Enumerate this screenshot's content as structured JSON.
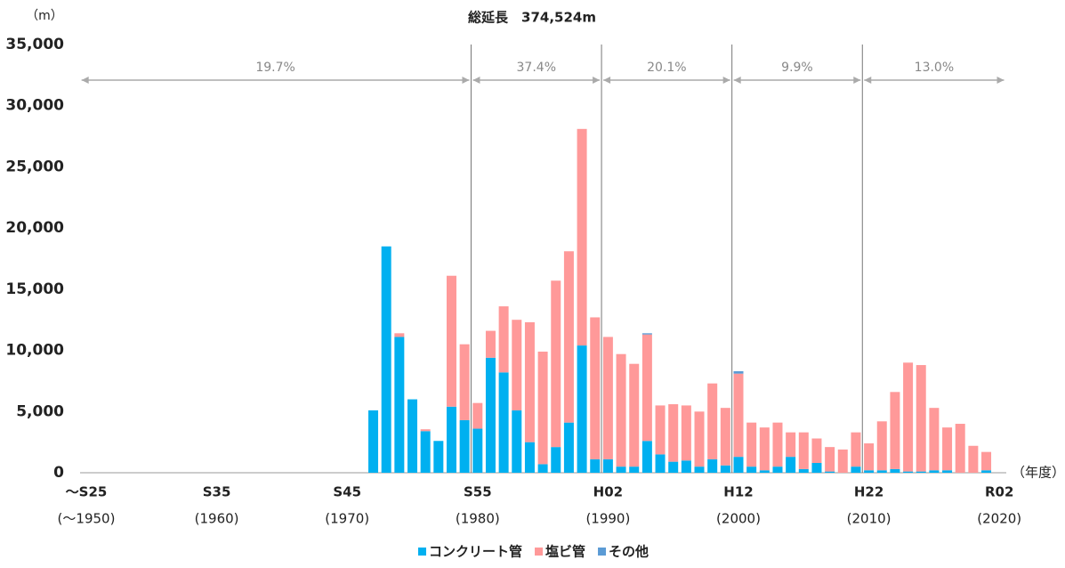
{
  "chart_data": {
    "type": "stacked-bar",
    "title": "総延長　374,524m",
    "y_unit_label": "（m）",
    "x_unit_label": "（年度）",
    "categories": [
      "～S25",
      null,
      null,
      null,
      null,
      null,
      null,
      null,
      null,
      null,
      "S35",
      null,
      null,
      null,
      null,
      null,
      null,
      null,
      null,
      null,
      "S45",
      null,
      null,
      null,
      null,
      null,
      null,
      null,
      null,
      null,
      "S55",
      null,
      null,
      null,
      null,
      null,
      null,
      null,
      null,
      null,
      "H02",
      null,
      null,
      null,
      null,
      null,
      null,
      null,
      null,
      null,
      "H12",
      null,
      null,
      null,
      null,
      null,
      null,
      null,
      null,
      null,
      "H22",
      null,
      null,
      null,
      null,
      null,
      null,
      null,
      null,
      null,
      "R02"
    ],
    "category_years": [
      "(～1950)",
      null,
      null,
      null,
      null,
      null,
      null,
      null,
      null,
      null,
      "(1960)",
      null,
      null,
      null,
      null,
      null,
      null,
      null,
      null,
      null,
      "(1970)",
      null,
      null,
      null,
      null,
      null,
      null,
      null,
      null,
      null,
      "(1980)",
      null,
      null,
      null,
      null,
      null,
      null,
      null,
      null,
      null,
      "(1990)",
      null,
      null,
      null,
      null,
      null,
      null,
      null,
      null,
      null,
      "(2000)",
      null,
      null,
      null,
      null,
      null,
      null,
      null,
      null,
      null,
      "(2010)",
      null,
      null,
      null,
      null,
      null,
      null,
      null,
      null,
      null,
      "(2020)"
    ],
    "series": [
      {
        "name": "コンクリート管",
        "color": "#00b0f0",
        "values": [
          0,
          0,
          0,
          0,
          0,
          0,
          0,
          0,
          0,
          0,
          0,
          0,
          0,
          0,
          0,
          0,
          0,
          0,
          0,
          0,
          0,
          0,
          5100,
          18500,
          11100,
          6000,
          3400,
          2600,
          5400,
          4300,
          3600,
          9400,
          8200,
          5100,
          2500,
          700,
          2100,
          4100,
          10400,
          1100,
          1100,
          500,
          500,
          2600,
          1500,
          900,
          1000,
          500,
          1100,
          600,
          1300,
          500,
          200,
          500,
          1300,
          300,
          800,
          100,
          0,
          500,
          200,
          200,
          300,
          100,
          100,
          200,
          200,
          0,
          0,
          200,
          0
        ]
      },
      {
        "name": "塩ビ管",
        "color": "#ff9999",
        "values": [
          0,
          0,
          0,
          0,
          0,
          0,
          0,
          0,
          0,
          0,
          0,
          0,
          0,
          0,
          0,
          0,
          0,
          0,
          0,
          0,
          0,
          0,
          0,
          0,
          300,
          0,
          150,
          0,
          10700,
          6200,
          2100,
          2200,
          5400,
          7400,
          9800,
          9200,
          13600,
          14000,
          17700,
          11600,
          10000,
          9200,
          8400,
          8700,
          4000,
          4700,
          4500,
          4500,
          6200,
          4700,
          6800,
          3600,
          3500,
          3600,
          2000,
          3000,
          2000,
          2000,
          1900,
          2800,
          2200,
          4000,
          6300,
          8900,
          8700,
          5100,
          3500,
          4000,
          2200,
          1500,
          0
        ]
      },
      {
        "name": "その他",
        "color": "#5b9bd5",
        "values": [
          0,
          0,
          0,
          0,
          0,
          0,
          0,
          0,
          0,
          0,
          0,
          0,
          0,
          0,
          0,
          0,
          0,
          0,
          0,
          0,
          0,
          0,
          0,
          0,
          0,
          0,
          0,
          0,
          0,
          0,
          0,
          0,
          0,
          0,
          0,
          0,
          0,
          0,
          0,
          0,
          0,
          0,
          0,
          100,
          0,
          0,
          0,
          0,
          0,
          0,
          200,
          0,
          0,
          0,
          0,
          0,
          0,
          0,
          0,
          0,
          0,
          0,
          0,
          0,
          0,
          0,
          0,
          0,
          0,
          0,
          0
        ]
      }
    ],
    "period_shares": [
      "19.7%",
      "37.4%",
      "20.1%",
      "9.9%",
      "13.0%"
    ],
    "ylim": [
      0,
      35000
    ],
    "yticks": [
      0,
      {
        "value": 5000,
        "label": "5,000"
      },
      {
        "value": 10000,
        "label": "10,000"
      },
      {
        "value": 15000,
        "label": "15,000"
      },
      {
        "value": 20000,
        "label": "20,000"
      },
      {
        "value": 25000,
        "label": "25,000"
      },
      {
        "value": 30000,
        "label": "30,000"
      },
      {
        "value": 35000,
        "label": "35,000"
      }
    ],
    "grid": false,
    "legend": "bottom"
  }
}
